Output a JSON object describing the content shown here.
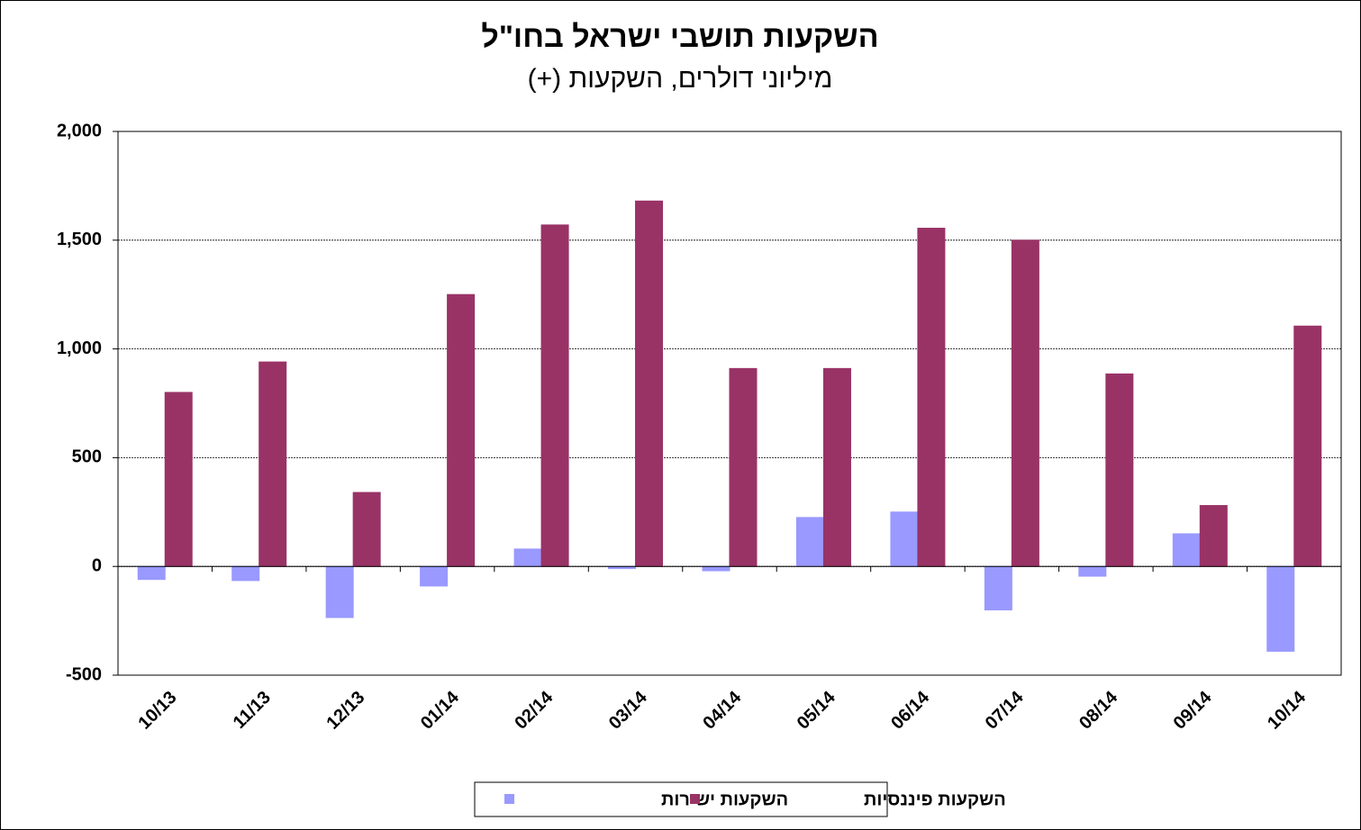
{
  "chart_data": {
    "type": "bar",
    "title": "השקעות תושבי ישראל בחו\"ל",
    "subtitle": "מיליוני דולרים, השקעות (+)",
    "categories": [
      "10/13",
      "11/13",
      "12/13",
      "01/14",
      "02/14",
      "03/14",
      "04/14",
      "05/14",
      "06/14",
      "07/14",
      "08/14",
      "09/14",
      "10/14"
    ],
    "series": [
      {
        "name": "השקעות ישירות",
        "color": "#9999ff",
        "values": [
          -60,
          -65,
          -235,
          -90,
          80,
          -10,
          -20,
          225,
          250,
          -200,
          -45,
          150,
          -390
        ]
      },
      {
        "name": "השקעות פיננסיות",
        "color": "#993366",
        "values": [
          800,
          940,
          340,
          1250,
          1570,
          1680,
          910,
          910,
          1555,
          1500,
          885,
          280,
          1105
        ]
      }
    ],
    "ylim": [
      -500,
      2000
    ],
    "yticks": [
      -500,
      0,
      {
        "value": 500,
        "label": "500"
      },
      {
        "value": 1000,
        "label": "1,000"
      },
      {
        "value": 1500,
        "label": "1,500"
      },
      {
        "value": 2000,
        "label": "2,000"
      }
    ],
    "grid": true,
    "legend": "bottom"
  }
}
